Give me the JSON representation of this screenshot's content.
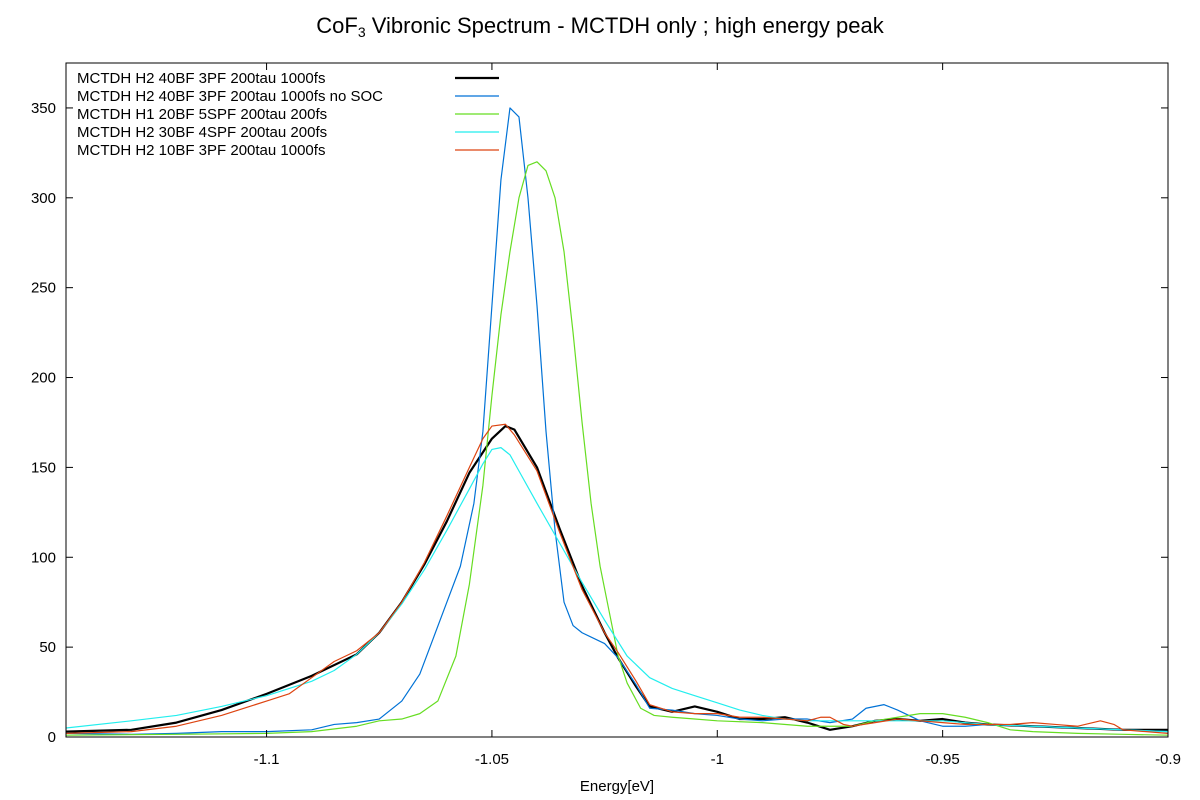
{
  "title": {
    "main": "CoF",
    "sub": "3",
    "rest": " Vibronic Spectrum - MCTDH only ; high energy peak"
  },
  "chart_data": {
    "type": "line",
    "title": "CoF3 Vibronic Spectrum - MCTDH only ; high energy peak",
    "xlabel": "Energy[eV]",
    "ylabel": "",
    "xlim": [
      -1.1445,
      -0.9
    ],
    "ylim": [
      0,
      375
    ],
    "xticks": [
      -1.1,
      -1.05,
      -1,
      -0.95,
      -0.9
    ],
    "xtick_labels": [
      "-1.1",
      "-1.05",
      "-1",
      "-0.95",
      "-0.9"
    ],
    "yticks": [
      0,
      50,
      100,
      150,
      200,
      250,
      300,
      350
    ],
    "ytick_labels": [
      "0",
      "50",
      "100",
      "150",
      "200",
      "250",
      "300",
      "350"
    ],
    "grid": false,
    "legend_position": "top-left",
    "series": [
      {
        "name": "MCTDH H2 40BF 3PF 200tau 1000fs",
        "color": "#000000",
        "width": 2.2,
        "points": [
          [
            -1.1445,
            3
          ],
          [
            -1.13,
            4
          ],
          [
            -1.12,
            8
          ],
          [
            -1.11,
            15
          ],
          [
            -1.1,
            24
          ],
          [
            -1.09,
            34
          ],
          [
            -1.08,
            46
          ],
          [
            -1.075,
            58
          ],
          [
            -1.07,
            75
          ],
          [
            -1.065,
            96
          ],
          [
            -1.06,
            120
          ],
          [
            -1.055,
            147
          ],
          [
            -1.05,
            166
          ],
          [
            -1.047,
            173
          ],
          [
            -1.045,
            171
          ],
          [
            -1.04,
            150
          ],
          [
            -1.035,
            116
          ],
          [
            -1.03,
            84
          ],
          [
            -1.025,
            58
          ],
          [
            -1.022,
            44
          ],
          [
            -1.018,
            28
          ],
          [
            -1.015,
            17
          ],
          [
            -1.01,
            14
          ],
          [
            -1.005,
            17
          ],
          [
            -1.0,
            14
          ],
          [
            -0.995,
            10
          ],
          [
            -0.99,
            10
          ],
          [
            -0.985,
            11
          ],
          [
            -0.98,
            8
          ],
          [
            -0.975,
            4
          ],
          [
            -0.97,
            6
          ],
          [
            -0.965,
            9
          ],
          [
            -0.96,
            10
          ],
          [
            -0.955,
            9
          ],
          [
            -0.95,
            10
          ],
          [
            -0.945,
            8
          ],
          [
            -0.94,
            7
          ],
          [
            -0.93,
            6
          ],
          [
            -0.92,
            5
          ],
          [
            -0.91,
            4
          ],
          [
            -0.9,
            4
          ]
        ]
      },
      {
        "name": "MCTDH H2 40BF 3PF 200tau 1000fs no SOC",
        "color": "#0072d6",
        "width": 1.2,
        "points": [
          [
            -1.1445,
            2
          ],
          [
            -1.13,
            1.5
          ],
          [
            -1.12,
            2
          ],
          [
            -1.11,
            3
          ],
          [
            -1.1,
            3
          ],
          [
            -1.09,
            4
          ],
          [
            -1.085,
            7
          ],
          [
            -1.08,
            8
          ],
          [
            -1.075,
            10
          ],
          [
            -1.07,
            20
          ],
          [
            -1.066,
            35
          ],
          [
            -1.063,
            55
          ],
          [
            -1.06,
            75
          ],
          [
            -1.057,
            95
          ],
          [
            -1.054,
            130
          ],
          [
            -1.052,
            170
          ],
          [
            -1.05,
            240
          ],
          [
            -1.048,
            310
          ],
          [
            -1.046,
            350
          ],
          [
            -1.044,
            345
          ],
          [
            -1.042,
            300
          ],
          [
            -1.04,
            240
          ],
          [
            -1.038,
            170
          ],
          [
            -1.036,
            115
          ],
          [
            -1.034,
            75
          ],
          [
            -1.032,
            62
          ],
          [
            -1.03,
            58
          ],
          [
            -1.025,
            52
          ],
          [
            -1.022,
            44
          ],
          [
            -1.018,
            29
          ],
          [
            -1.015,
            16
          ],
          [
            -1.01,
            15
          ],
          [
            -1.005,
            13
          ],
          [
            -1.0,
            12
          ],
          [
            -0.995,
            10
          ],
          [
            -0.99,
            9
          ],
          [
            -0.985,
            10
          ],
          [
            -0.98,
            10
          ],
          [
            -0.975,
            8
          ],
          [
            -0.97,
            10
          ],
          [
            -0.967,
            16
          ],
          [
            -0.963,
            18
          ],
          [
            -0.96,
            15
          ],
          [
            -0.955,
            9
          ],
          [
            -0.95,
            6
          ],
          [
            -0.945,
            6
          ],
          [
            -0.94,
            7
          ],
          [
            -0.93,
            6
          ],
          [
            -0.92,
            5
          ],
          [
            -0.91,
            4
          ],
          [
            -0.9,
            3
          ]
        ]
      },
      {
        "name": "MCTDH H1 20BF 5SPF 200tau 200fs",
        "color": "#66dd22",
        "width": 1.2,
        "points": [
          [
            -1.1445,
            1
          ],
          [
            -1.12,
            1.5
          ],
          [
            -1.1,
            2
          ],
          [
            -1.09,
            3
          ],
          [
            -1.08,
            6
          ],
          [
            -1.075,
            9
          ],
          [
            -1.07,
            10
          ],
          [
            -1.066,
            13
          ],
          [
            -1.062,
            20
          ],
          [
            -1.058,
            45
          ],
          [
            -1.055,
            85
          ],
          [
            -1.052,
            140
          ],
          [
            -1.05,
            190
          ],
          [
            -1.048,
            235
          ],
          [
            -1.046,
            270
          ],
          [
            -1.044,
            300
          ],
          [
            -1.042,
            318
          ],
          [
            -1.04,
            320
          ],
          [
            -1.038,
            315
          ],
          [
            -1.036,
            300
          ],
          [
            -1.034,
            270
          ],
          [
            -1.032,
            225
          ],
          [
            -1.03,
            175
          ],
          [
            -1.028,
            130
          ],
          [
            -1.026,
            95
          ],
          [
            -1.024,
            70
          ],
          [
            -1.022,
            45
          ],
          [
            -1.02,
            30
          ],
          [
            -1.017,
            16
          ],
          [
            -1.014,
            12
          ],
          [
            -1.01,
            11
          ],
          [
            -1.005,
            10
          ],
          [
            -1.0,
            9
          ],
          [
            -0.99,
            8
          ],
          [
            -0.98,
            6
          ],
          [
            -0.97,
            6
          ],
          [
            -0.965,
            9
          ],
          [
            -0.96,
            11
          ],
          [
            -0.955,
            13
          ],
          [
            -0.95,
            13
          ],
          [
            -0.945,
            11
          ],
          [
            -0.94,
            8
          ],
          [
            -0.935,
            4
          ],
          [
            -0.93,
            3
          ],
          [
            -0.92,
            2
          ],
          [
            -0.91,
            1.5
          ],
          [
            -0.9,
            1
          ]
        ]
      },
      {
        "name": "MCTDH H2 30BF 4SPF 200tau 200fs",
        "color": "#22eeee",
        "width": 1.2,
        "points": [
          [
            -1.1445,
            5
          ],
          [
            -1.13,
            9
          ],
          [
            -1.12,
            12
          ],
          [
            -1.11,
            17
          ],
          [
            -1.1,
            23
          ],
          [
            -1.09,
            31
          ],
          [
            -1.085,
            37
          ],
          [
            -1.08,
            46
          ],
          [
            -1.075,
            58
          ],
          [
            -1.07,
            74
          ],
          [
            -1.065,
            93
          ],
          [
            -1.06,
            115
          ],
          [
            -1.055,
            138
          ],
          [
            -1.052,
            152
          ],
          [
            -1.05,
            160
          ],
          [
            -1.048,
            161
          ],
          [
            -1.046,
            157
          ],
          [
            -1.044,
            148
          ],
          [
            -1.04,
            130
          ],
          [
            -1.035,
            108
          ],
          [
            -1.03,
            86
          ],
          [
            -1.025,
            65
          ],
          [
            -1.02,
            45
          ],
          [
            -1.015,
            33
          ],
          [
            -1.01,
            27
          ],
          [
            -1.005,
            23
          ],
          [
            -1.0,
            19
          ],
          [
            -0.995,
            15
          ],
          [
            -0.99,
            12
          ],
          [
            -0.985,
            10
          ],
          [
            -0.98,
            9
          ],
          [
            -0.975,
            9
          ],
          [
            -0.97,
            9
          ],
          [
            -0.96,
            9
          ],
          [
            -0.95,
            9
          ],
          [
            -0.94,
            7
          ],
          [
            -0.93,
            6
          ],
          [
            -0.92,
            5
          ],
          [
            -0.91,
            4
          ],
          [
            -0.9,
            3
          ]
        ]
      },
      {
        "name": "MCTDH H2 10BF 3PF 200tau 1000fs",
        "color": "#dd4411",
        "width": 1.2,
        "points": [
          [
            -1.1445,
            2
          ],
          [
            -1.13,
            3
          ],
          [
            -1.12,
            6
          ],
          [
            -1.11,
            12
          ],
          [
            -1.1,
            20
          ],
          [
            -1.095,
            24
          ],
          [
            -1.09,
            33
          ],
          [
            -1.085,
            42
          ],
          [
            -1.08,
            48
          ],
          [
            -1.075,
            58
          ],
          [
            -1.07,
            75
          ],
          [
            -1.065,
            97
          ],
          [
            -1.06,
            123
          ],
          [
            -1.055,
            150
          ],
          [
            -1.052,
            166
          ],
          [
            -1.05,
            173
          ],
          [
            -1.047,
            174
          ],
          [
            -1.045,
            168
          ],
          [
            -1.04,
            148
          ],
          [
            -1.035,
            114
          ],
          [
            -1.03,
            82
          ],
          [
            -1.025,
            58
          ],
          [
            -1.022,
            47
          ],
          [
            -1.018,
            31
          ],
          [
            -1.015,
            18
          ],
          [
            -1.01,
            14
          ],
          [
            -1.005,
            13
          ],
          [
            -1.0,
            13
          ],
          [
            -0.995,
            11
          ],
          [
            -0.99,
            11
          ],
          [
            -0.985,
            10
          ],
          [
            -0.98,
            9
          ],
          [
            -0.977,
            11
          ],
          [
            -0.975,
            11
          ],
          [
            -0.972,
            7
          ],
          [
            -0.97,
            6
          ],
          [
            -0.965,
            8
          ],
          [
            -0.96,
            10
          ],
          [
            -0.955,
            9
          ],
          [
            -0.95,
            8
          ],
          [
            -0.945,
            7
          ],
          [
            -0.94,
            7
          ],
          [
            -0.935,
            7
          ],
          [
            -0.93,
            8
          ],
          [
            -0.925,
            7
          ],
          [
            -0.92,
            6
          ],
          [
            -0.915,
            9
          ],
          [
            -0.912,
            7
          ],
          [
            -0.91,
            4
          ],
          [
            -0.9,
            2
          ]
        ]
      }
    ]
  }
}
